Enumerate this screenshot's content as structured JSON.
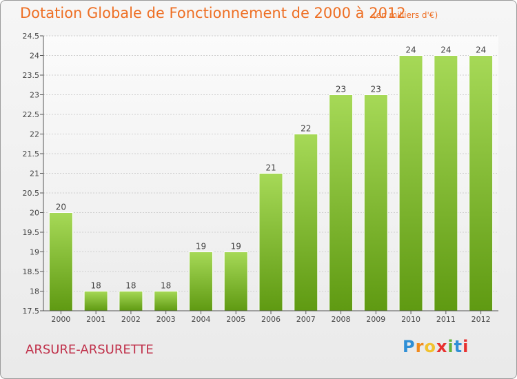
{
  "header": {
    "title": "Dotation Globale de Fonctionnement de 2000 à 2012",
    "unit": "(en milliers d'€)"
  },
  "footer": {
    "commune": "ARSURE-ARSURETTE",
    "brand_letters": [
      "P",
      "r",
      "o",
      "x",
      "i",
      "t",
      "i"
    ],
    "brand_colors": [
      "#2f8fd6",
      "#f18a1d",
      "#f2c12e",
      "#e8312f",
      "#63b33b",
      "#2f8fd6",
      "#e8312f"
    ]
  },
  "colors": {
    "bar_top": "#a6d957",
    "bar_bottom": "#5f9a12",
    "title": "#ee6f24",
    "commune": "#c0304a"
  },
  "chart_data": {
    "type": "bar",
    "title": "Dotation Globale de Fonctionnement de 2000 à 2012",
    "subtitle": "(en milliers d'€)",
    "categories": [
      "2000",
      "2001",
      "2002",
      "2003",
      "2004",
      "2005",
      "2006",
      "2007",
      "2008",
      "2009",
      "2010",
      "2011",
      "2012"
    ],
    "values": [
      20,
      18,
      18,
      18,
      19,
      19,
      21,
      22,
      23,
      23,
      24,
      24,
      24
    ],
    "value_labels": [
      "20",
      "18",
      "18",
      "18",
      "19",
      "19",
      "21",
      "22",
      "23",
      "23",
      "24",
      "24",
      "24"
    ],
    "ylim": [
      17.5,
      24.5
    ],
    "yticks": [
      "17.5",
      "18",
      "18.5",
      "19",
      "19.5",
      "20",
      "20.5",
      "21",
      "21.5",
      "22",
      "22.5",
      "23",
      "23.5",
      "24",
      "24.5"
    ],
    "grid": true,
    "legend": "none"
  }
}
